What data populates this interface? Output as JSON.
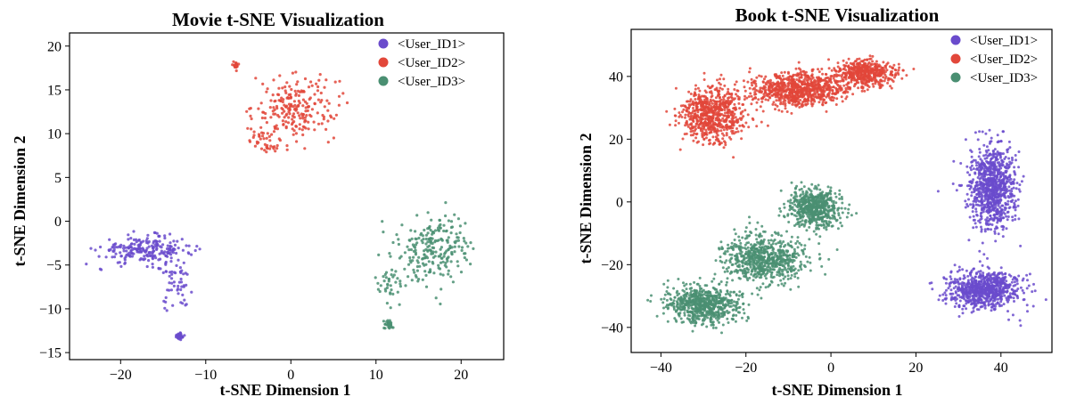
{
  "colors": {
    "user1": "#6a4bcc",
    "user2": "#e2473a",
    "user3": "#4a8f72",
    "noise": "#555555",
    "axis": "#000000",
    "background": "#ffffff"
  },
  "chart_data": [
    {
      "type": "scatter",
      "title": "Movie t-SNE Visualization",
      "xlabel": "t-SNE Dimension 1",
      "ylabel": "t-SNE Dimension 2",
      "xlim": [
        -26,
        25
      ],
      "ylim": [
        -15.8,
        21.5
      ],
      "xticks": [
        -20,
        -10,
        0,
        10,
        20
      ],
      "yticks": [
        -15,
        -10,
        -5,
        0,
        5,
        10,
        15,
        20
      ],
      "grid": false,
      "legend_position": "top-right",
      "series": [
        {
          "name": "<User_ID1>",
          "color_key": "user1",
          "clusters": [
            {
              "center": [
                -17,
                -3.3
              ],
              "spread": [
                4.5,
                1.3
              ],
              "count": 230
            },
            {
              "center": [
                -13.5,
                -7.5
              ],
              "spread": [
                1.4,
                2.2
              ],
              "count": 50
            },
            {
              "center": [
                -13,
                -13.1
              ],
              "spread": [
                0.45,
                0.35
              ],
              "count": 35
            }
          ]
        },
        {
          "name": "<User_ID2>",
          "color_key": "user2",
          "clusters": [
            {
              "center": [
                0.5,
                13
              ],
              "spread": [
                4,
                3
              ],
              "count": 220
            },
            {
              "center": [
                -6.5,
                17.8
              ],
              "spread": [
                0.35,
                0.35
              ],
              "count": 20
            },
            {
              "center": [
                -3,
                9
              ],
              "spread": [
                2,
                1.5
              ],
              "count": 40
            }
          ]
        },
        {
          "name": "<User_ID3>",
          "color_key": "user3",
          "clusters": [
            {
              "center": [
                17,
                -3
              ],
              "spread": [
                3.5,
                3.2
              ],
              "count": 230
            },
            {
              "center": [
                11.5,
                -11.8
              ],
              "spread": [
                0.4,
                0.4
              ],
              "count": 25
            },
            {
              "center": [
                12,
                -7
              ],
              "spread": [
                1.5,
                2
              ],
              "count": 40
            }
          ]
        }
      ]
    },
    {
      "type": "scatter",
      "title": "Book t-SNE Visualization",
      "xlabel": "t-SNE Dimension 1",
      "ylabel": "t-SNE Dimension 2",
      "xlim": [
        -47,
        52
      ],
      "ylim": [
        -48,
        55
      ],
      "xticks": [
        -40,
        -20,
        0,
        20,
        40
      ],
      "yticks": [
        -40,
        -20,
        0,
        20,
        40
      ],
      "grid": false,
      "legend_position": "top-right",
      "series": [
        {
          "name": "<User_ID1>",
          "color_key": "user1",
          "clusters": [
            {
              "center": [
                38,
                5
              ],
              "spread": [
                4.5,
                11
              ],
              "count": 900
            },
            {
              "center": [
                36,
                -28
              ],
              "spread": [
                7,
                5
              ],
              "count": 800
            }
          ]
        },
        {
          "name": "<User_ID2>",
          "color_key": "user2",
          "clusters": [
            {
              "center": [
                -28,
                28
              ],
              "spread": [
                6,
                7
              ],
              "count": 700
            },
            {
              "center": [
                -8,
                36
              ],
              "spread": [
                9,
                4.5
              ],
              "count": 800
            },
            {
              "center": [
                8,
                41
              ],
              "spread": [
                6,
                3.5
              ],
              "count": 500
            }
          ]
        },
        {
          "name": "<User_ID3>",
          "color_key": "user3",
          "clusters": [
            {
              "center": [
                -30,
                -33
              ],
              "spread": [
                7,
                5
              ],
              "count": 700
            },
            {
              "center": [
                -16,
                -18
              ],
              "spread": [
                8,
                6
              ],
              "count": 700
            },
            {
              "center": [
                -4,
                -2
              ],
              "spread": [
                5,
                5
              ],
              "count": 600
            }
          ]
        }
      ]
    }
  ]
}
